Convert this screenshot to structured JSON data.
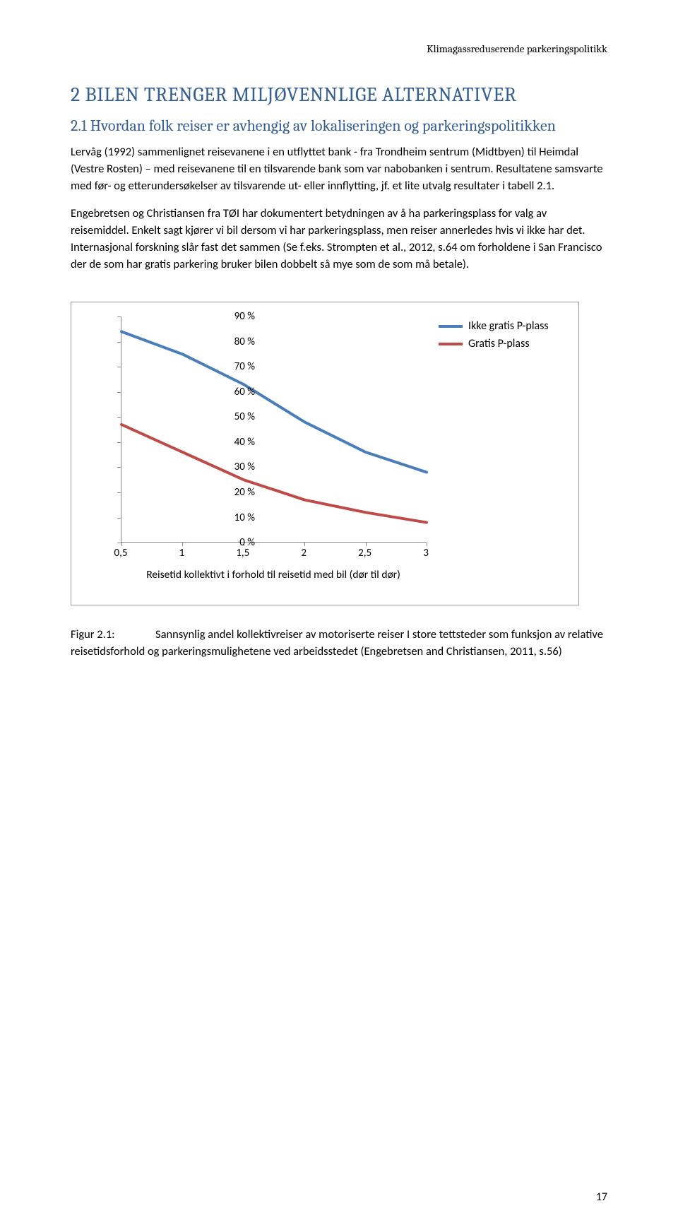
{
  "running_head": "Klimagassreduserende parkeringspolitikk",
  "h1": "2  BILEN TRENGER MILJØVENNLIGE ALTERNATIVER",
  "h2": "2.1 Hvordan folk reiser er avhengig av lokaliseringen og parkeringspolitikken",
  "para1": "Lervåg (1992) sammenlignet reisevanene i en utflyttet bank - fra Trondheim sentrum (Midtbyen) til Heimdal (Vestre Rosten) – med reisevanene til en tilsvarende bank som var nabobanken i sentrum. Resultatene samsvarte med før- og etterundersøkelser av tilsvarende ut- eller innflytting, jf. et lite utvalg resultater i tabell 2.1.",
  "para2": "Engebretsen og Christiansen fra TØI har dokumentert betydningen av å ha parkeringsplass for valg av reisemiddel. Enkelt sagt kjører vi bil dersom vi har parkeringsplass, men reiser annerledes hvis vi ikke har det. Internasjonal forskning slår fast det sammen (Se f.eks. Strompten et al., 2012, s.64 om forholdene i San Francisco der de som har gratis parkering bruker bilen dobbelt så mye som de som må betale).",
  "chart": {
    "y_ticks": [
      "0 %",
      "10 %",
      "20 %",
      "30 %",
      "40 %",
      "50 %",
      "60 %",
      "70 %",
      "80 %",
      "90 %"
    ],
    "x_ticks": [
      "0,5",
      "1",
      "1,5",
      "2",
      "2,5",
      "3"
    ],
    "x_axis_title": "Reisetid kollektivt i forhold til reisetid med bil (dør til dør)",
    "legend": {
      "series1": {
        "label": "Ikke gratis P-plass",
        "color": "#4a7ebb"
      },
      "series2": {
        "label": "Gratis P-plass",
        "color": "#be4b48"
      }
    },
    "series1": {
      "color": "#4a7ebb",
      "x": [
        0.5,
        1,
        1.5,
        2,
        2.5,
        3
      ],
      "y": [
        84,
        75,
        63,
        48,
        36,
        28
      ]
    },
    "series2": {
      "color": "#be4b48",
      "x": [
        0.5,
        1,
        1.5,
        2,
        2.5,
        3
      ],
      "y": [
        47,
        36,
        25,
        17,
        12,
        8
      ]
    },
    "x_domain": [
      0.5,
      3
    ],
    "y_domain": [
      0,
      90
    ]
  },
  "figure_label": "Figur 2.1:",
  "figure_caption": "Sannsynlig andel kollektivreiser av motoriserte reiser I store tettsteder som funksjon av relative reisetidsforhold og parkeringsmulighetene ved arbeidsstedet (Engebretsen and Christiansen, 2011, s.56)",
  "page_number": "17"
}
